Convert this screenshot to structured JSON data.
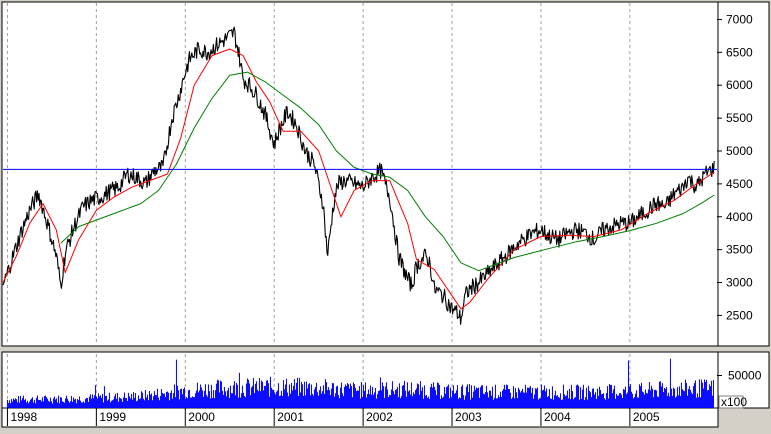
{
  "chart_data": {
    "type": "line",
    "grid": true,
    "price_panel": {
      "ylim": [
        2050,
        7250
      ],
      "y_ticks": [
        "7000",
        "6500",
        "6000",
        "5500",
        "5000",
        "4500",
        "4000",
        "3500",
        "3000",
        "2500"
      ],
      "y_tick_values": [
        7000,
        6500,
        6000,
        5500,
        5000,
        4500,
        4000,
        3500,
        3000,
        2500
      ],
      "reference_line": 4720,
      "reference_line_color": "#0000ff",
      "series": [
        {
          "role": "price",
          "color": "#000000",
          "x": [
            1997.95,
            1998.05,
            1998.15,
            1998.25,
            1998.35,
            1998.45,
            1998.55,
            1998.6,
            1998.65,
            1998.75,
            1998.85,
            1998.95,
            1999.05,
            1999.15,
            1999.25,
            1999.35,
            1999.45,
            1999.55,
            1999.65,
            1999.75,
            1999.85,
            1999.92,
            2000.0,
            2000.05,
            2000.15,
            2000.25,
            2000.35,
            2000.45,
            2000.55,
            2000.6,
            2000.65,
            2000.72,
            2000.8,
            2000.9,
            2001.0,
            2001.05,
            2001.15,
            2001.25,
            2001.35,
            2001.45,
            2001.55,
            2001.6,
            2001.65,
            2001.68,
            2001.72,
            2001.8,
            2001.9,
            2002.0,
            2002.1,
            2002.2,
            2002.3,
            2002.4,
            2002.5,
            2002.55,
            2002.6,
            2002.7,
            2002.75,
            2002.8,
            2002.9,
            2003.0,
            2003.05,
            2003.1,
            2003.15,
            2003.2,
            2003.3,
            2003.45,
            2003.6,
            2003.75,
            2003.9,
            2004.0,
            2004.1,
            2004.2,
            2004.3,
            2004.4,
            2004.5,
            2004.6,
            2004.7,
            2004.8,
            2004.9,
            2005.0,
            2005.1,
            2005.2,
            2005.3,
            2005.4,
            2005.5,
            2005.6,
            2005.65,
            2005.75,
            2005.85,
            2005.95
          ],
          "values": [
            2950,
            3350,
            3750,
            4100,
            4350,
            3900,
            3400,
            2950,
            3450,
            3850,
            4150,
            4250,
            4300,
            4380,
            4450,
            4650,
            4600,
            4500,
            4700,
            4750,
            5500,
            5800,
            6200,
            6400,
            6550,
            6500,
            6600,
            6700,
            6800,
            6500,
            6100,
            6000,
            5850,
            5550,
            5100,
            5300,
            5600,
            5400,
            5000,
            4800,
            4200,
            3400,
            4000,
            4300,
            4500,
            4550,
            4500,
            4450,
            4600,
            4700,
            4300,
            3400,
            3050,
            2950,
            3250,
            3400,
            3300,
            2900,
            2800,
            2600,
            2550,
            2450,
            2800,
            2900,
            3000,
            3200,
            3400,
            3600,
            3750,
            3800,
            3700,
            3650,
            3750,
            3800,
            3750,
            3650,
            3800,
            3850,
            3900,
            3900,
            4000,
            4100,
            4200,
            4150,
            4350,
            4450,
            4600,
            4450,
            4650,
            4750
          ]
        },
        {
          "role": "short-moving-average",
          "color": "#ff0000",
          "x": [
            1997.95,
            1998.1,
            1998.25,
            1998.4,
            1998.55,
            1998.65,
            1998.8,
            1999.0,
            1999.2,
            1999.4,
            1999.6,
            1999.8,
            1999.95,
            2000.1,
            2000.3,
            2000.5,
            2000.65,
            2000.8,
            2000.95,
            2001.1,
            2001.3,
            2001.5,
            2001.65,
            2001.75,
            2001.9,
            2002.1,
            2002.3,
            2002.5,
            2002.6,
            2002.8,
            2003.0,
            2003.1,
            2003.2,
            2003.4,
            2003.7,
            2004.0,
            2004.3,
            2004.6,
            2004.9,
            2005.2,
            2005.5,
            2005.75,
            2005.95
          ],
          "values": [
            3000,
            3400,
            3900,
            4200,
            3800,
            3150,
            3650,
            4100,
            4300,
            4450,
            4550,
            4650,
            5200,
            6000,
            6450,
            6550,
            6450,
            6050,
            5750,
            5300,
            5300,
            5000,
            4400,
            4000,
            4400,
            4550,
            4550,
            3900,
            3350,
            3200,
            2800,
            2600,
            2700,
            3050,
            3500,
            3700,
            3720,
            3700,
            3800,
            4050,
            4250,
            4500,
            4680
          ]
        },
        {
          "role": "long-moving-average",
          "color": "#008000",
          "x": [
            1998.6,
            1998.8,
            1999.0,
            1999.2,
            1999.5,
            1999.7,
            1999.9,
            2000.1,
            2000.3,
            2000.5,
            2000.7,
            2000.9,
            2001.1,
            2001.3,
            2001.5,
            2001.7,
            2001.9,
            2002.1,
            2002.3,
            2002.5,
            2002.7,
            2002.9,
            2003.1,
            2003.3,
            2003.5,
            2003.7,
            2003.9,
            2004.1,
            2004.4,
            2004.7,
            2005.0,
            2005.3,
            2005.6,
            2005.8,
            2005.95
          ],
          "values": [
            3600,
            3850,
            3950,
            4050,
            4200,
            4400,
            4800,
            5350,
            5800,
            6150,
            6200,
            6050,
            5850,
            5650,
            5400,
            5000,
            4750,
            4650,
            4600,
            4400,
            4000,
            3700,
            3300,
            3180,
            3280,
            3380,
            3450,
            3520,
            3620,
            3700,
            3790,
            3900,
            4050,
            4200,
            4330
          ]
        }
      ]
    },
    "volume_panel": {
      "ylim": [
        0,
        80000
      ],
      "y_ticks": [
        "50000"
      ],
      "y_tick_values": [
        50000
      ],
      "multiplier_label": "x100",
      "color": "#0000ff",
      "x": [
        1998.0,
        1998.5,
        1999.0,
        1999.5,
        1999.8,
        2000.0,
        2000.5,
        2001.0,
        2001.5,
        2002.0,
        2002.5,
        2003.0,
        2003.5,
        2004.0,
        2004.5,
        2005.0,
        2005.5,
        2005.95
      ],
      "values": [
        14000,
        15000,
        17000,
        20000,
        26000,
        30000,
        34000,
        36000,
        34000,
        30000,
        32000,
        28000,
        27000,
        27000,
        27000,
        28000,
        32000,
        34000
      ]
    },
    "x_axis": {
      "xlim": [
        1997.95,
        2005.98
      ],
      "tick_labels": [
        "1998",
        "1999",
        "2000",
        "2001",
        "2002",
        "2003",
        "2004",
        "2005"
      ],
      "tick_values": [
        1998,
        1999,
        2000,
        2001,
        2002,
        2003,
        2004,
        2005
      ]
    }
  }
}
